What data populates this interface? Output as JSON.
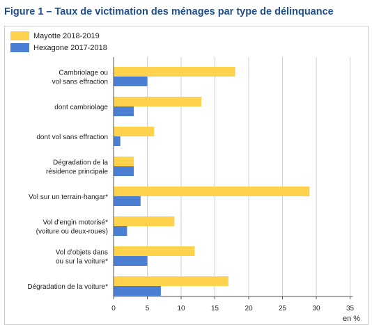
{
  "figure": {
    "title": "Figure 1 – Taux de victimation des ménages par type de délinquance",
    "unit_label": "en %"
  },
  "colors": {
    "mayotte": "#ffd24d",
    "hexagone": "#4a7fd4",
    "gridline": "#cfcfcf",
    "axis": "#555555",
    "title": "#1f4e8c"
  },
  "chart_data": {
    "type": "bar",
    "orientation": "horizontal",
    "title": "Figure 1 – Taux de victimation des ménages par type de délinquance",
    "xlabel": "en %",
    "ylabel": "",
    "xlim": [
      0,
      35
    ],
    "x_ticks": [
      0,
      5,
      10,
      15,
      20,
      25,
      30,
      35
    ],
    "grid": true,
    "legend_position": "top-left",
    "categories": [
      [
        "Cambriolage ou",
        "vol sans effraction"
      ],
      [
        "dont cambriolage"
      ],
      [
        "dont vol sans effraction"
      ],
      [
        "Dégradation de la",
        "résidence principale"
      ],
      [
        "Vol sur un terrain-hangar*"
      ],
      [
        "Vol d'engin motorisé*",
        "(voiture ou deux-roues)"
      ],
      [
        "Vol d'objets dans",
        "ou sur la voiture*"
      ],
      [
        "Dégradation de la voiture*"
      ]
    ],
    "series": [
      {
        "name": "Mayotte 2018-2019",
        "color": "#ffd24d",
        "values": [
          18,
          13,
          6,
          3,
          29,
          9,
          12,
          17
        ]
      },
      {
        "name": "Hexagone 2017-2018",
        "color": "#4a7fd4",
        "values": [
          5,
          3,
          1,
          3,
          4,
          2,
          5,
          7
        ]
      }
    ]
  }
}
